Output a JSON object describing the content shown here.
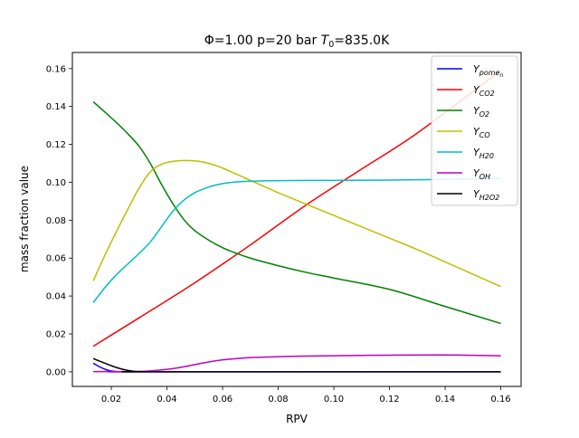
{
  "chart_data": {
    "type": "line",
    "title": "Φ=1.00 p=20 bar T₀=835.0K",
    "title_parts": {
      "prefix": "Φ=1.00 p=20 bar ",
      "t_symbol": "T",
      "t_sub": "0",
      "suffix": "=835.0K"
    },
    "xlabel": "RPV",
    "ylabel": "mass fraction value",
    "xlim": [
      0.006,
      0.1673
    ],
    "ylim": [
      -0.0077,
      0.1685
    ],
    "xticks": [
      0.02,
      0.04,
      0.06,
      0.08,
      0.1,
      0.12,
      0.14,
      0.16
    ],
    "xtick_labels": [
      "0.02",
      "0.04",
      "0.06",
      "0.08",
      "0.10",
      "0.12",
      "0.14",
      "0.16"
    ],
    "yticks": [
      0.0,
      0.02,
      0.04,
      0.06,
      0.08,
      0.1,
      0.12,
      0.14,
      0.16
    ],
    "ytick_labels": [
      "0.00",
      "0.02",
      "0.04",
      "0.06",
      "0.08",
      "0.10",
      "0.12",
      "0.14",
      "0.16"
    ],
    "grid": false,
    "legend_position": "top-right",
    "series": [
      {
        "name": "Y_pome_n",
        "label_base": "Y",
        "label_sub": "pome",
        "label_subsub": "n",
        "color": "#0000ff",
        "x": [
          0.0135,
          0.016,
          0.018,
          0.02,
          0.022,
          0.025,
          0.03,
          0.16
        ],
        "y": [
          0.0045,
          0.0025,
          0.0012,
          0.0004,
          0.0001,
          0.0,
          0.0,
          0.0
        ]
      },
      {
        "name": "Y_CO2",
        "label_base": "Y",
        "label_sub": "CO2",
        "color": "#ff0000",
        "x": [
          0.0135,
          0.03,
          0.05,
          0.07,
          0.09,
          0.11,
          0.13,
          0.16
        ],
        "y": [
          0.0135,
          0.0285,
          0.047,
          0.067,
          0.088,
          0.107,
          0.126,
          0.159
        ]
      },
      {
        "name": "Y_O2",
        "label_base": "Y",
        "label_sub": "O2",
        "color": "#008000",
        "x": [
          0.0135,
          0.02,
          0.025,
          0.03,
          0.034,
          0.038,
          0.042,
          0.046,
          0.05,
          0.055,
          0.06,
          0.065,
          0.07,
          0.08,
          0.09,
          0.1,
          0.12,
          0.14,
          0.16
        ],
        "y": [
          0.1425,
          0.134,
          0.127,
          0.119,
          0.11,
          0.099,
          0.089,
          0.0805,
          0.0745,
          0.0695,
          0.0655,
          0.0625,
          0.06,
          0.056,
          0.0525,
          0.0495,
          0.0435,
          0.0345,
          0.0255
        ]
      },
      {
        "name": "Y_CO",
        "label_base": "Y",
        "label_sub": "CO",
        "color": "#bfbf00",
        "x": [
          0.0135,
          0.018,
          0.022,
          0.026,
          0.03,
          0.034,
          0.038,
          0.042,
          0.046,
          0.05,
          0.055,
          0.06,
          0.07,
          0.08,
          0.09,
          0.1,
          0.11,
          0.12,
          0.13,
          0.14,
          0.15,
          0.16
        ],
        "y": [
          0.048,
          0.0625,
          0.0745,
          0.086,
          0.097,
          0.1055,
          0.1095,
          0.111,
          0.1115,
          0.1113,
          0.11,
          0.1075,
          0.101,
          0.0945,
          0.0885,
          0.0825,
          0.0765,
          0.0705,
          0.0645,
          0.058,
          0.0515,
          0.045
        ]
      },
      {
        "name": "Y_H20",
        "label_base": "Y",
        "label_sub": "H20",
        "color": "#00bfbf",
        "x": [
          0.0135,
          0.018,
          0.022,
          0.026,
          0.03,
          0.034,
          0.038,
          0.042,
          0.046,
          0.05,
          0.055,
          0.06,
          0.065,
          0.07,
          0.08,
          0.09,
          0.1,
          0.12,
          0.14,
          0.16
        ],
        "y": [
          0.0365,
          0.045,
          0.0515,
          0.057,
          0.0625,
          0.0685,
          0.0765,
          0.0845,
          0.0905,
          0.0945,
          0.0975,
          0.0993,
          0.1002,
          0.1006,
          0.1009,
          0.101,
          0.101,
          0.1012,
          0.1015,
          0.102
        ]
      },
      {
        "name": "Y_OH",
        "label_base": "Y",
        "label_sub": "OH",
        "color": "#bf00bf",
        "x": [
          0.0135,
          0.02,
          0.025,
          0.03,
          0.035,
          0.04,
          0.045,
          0.05,
          0.055,
          0.06,
          0.065,
          0.07,
          0.08,
          0.09,
          0.1,
          0.12,
          0.14,
          0.16
        ],
        "y": [
          0.0001,
          0.0001,
          0.0001,
          0.0002,
          0.0006,
          0.0013,
          0.0024,
          0.0038,
          0.0052,
          0.0063,
          0.007,
          0.0075,
          0.008,
          0.0083,
          0.0085,
          0.0088,
          0.0089,
          0.0085
        ]
      },
      {
        "name": "Y_H2O2",
        "label_base": "Y",
        "label_sub": "H2O2",
        "color": "#000000",
        "x": [
          0.0135,
          0.016,
          0.019,
          0.022,
          0.025,
          0.028,
          0.031,
          0.034,
          0.16
        ],
        "y": [
          0.007,
          0.0055,
          0.0038,
          0.0022,
          0.001,
          0.0003,
          0.0001,
          0.0,
          0.0
        ]
      }
    ]
  }
}
